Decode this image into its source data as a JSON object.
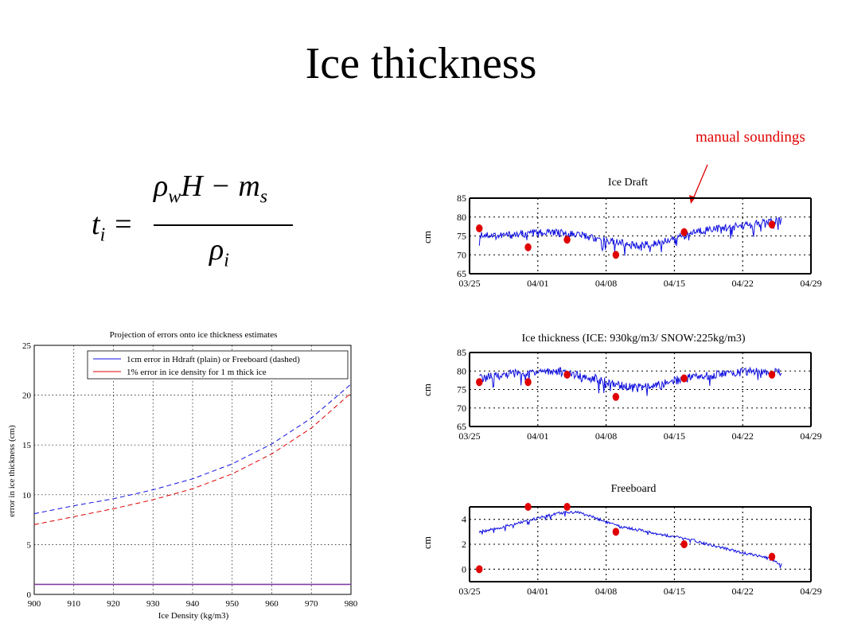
{
  "slide": {
    "title": "Ice thickness",
    "annotation": "manual soundings"
  },
  "equation": {
    "lhs": "t",
    "lhs_sub": "i",
    "equals": "=",
    "numerator_rho": "ρ",
    "numerator_rho_sub": "w",
    "numerator_rest": "H − m",
    "numerator_rest_sub": "s",
    "denominator": "ρ",
    "denominator_sub": "i"
  },
  "colors": {
    "series_blue": "#1010e0",
    "series_red": "#e00000",
    "purple": "#8040a0",
    "annotation": "#e00000"
  },
  "chart_data": [
    {
      "type": "line",
      "title": "Projection of errors onto ice thickness estimates",
      "xlabel": "Ice Density (kg/m3)",
      "ylabel": "error in ice thickness (cm)",
      "xlim": [
        900,
        980
      ],
      "ylim": [
        0,
        25
      ],
      "xticks": [
        "900",
        "910",
        "920",
        "930",
        "940",
        "950",
        "960",
        "970",
        "980"
      ],
      "yticks": [
        "0",
        "5",
        "10",
        "15",
        "20",
        "25"
      ],
      "grid": true,
      "legend_position": "top-right",
      "legend": [
        {
          "label": "1cm error in Hdraft (plain)  or Freeboard (dashed)",
          "color": "#1010e0"
        },
        {
          "label": "1% error in ice density for 1 m thick ice",
          "color": "#e00000"
        }
      ],
      "x": [
        900,
        910,
        920,
        930,
        940,
        950,
        960,
        970,
        980
      ],
      "series": [
        {
          "values": [
            8.1,
            8.9,
            9.6,
            10.5,
            11.6,
            13.1,
            15.1,
            17.7,
            21.1
          ],
          "style": "dashed",
          "color": "#1010e0"
        },
        {
          "values": [
            7.0,
            7.8,
            8.6,
            9.5,
            10.6,
            12.1,
            14.1,
            16.7,
            20.2
          ],
          "style": "dashed",
          "color": "#e00000"
        },
        {
          "values": [
            1.0,
            1.0,
            1.0,
            1.0,
            1.0,
            1.0,
            1.0,
            1.0,
            1.0
          ],
          "style": "solid",
          "color": "#8040a0"
        }
      ]
    },
    {
      "type": "line",
      "title": "Ice Draft",
      "ylabel": "cm",
      "xlim_days": [
        0,
        34
      ],
      "xticks": [
        "03/25",
        "04/01",
        "04/08",
        "04/15",
        "04/22",
        "04/29"
      ],
      "ylim": [
        65,
        85
      ],
      "yticks": [
        "65",
        "70",
        "75",
        "80",
        "85"
      ],
      "grid": true,
      "series": [
        {
          "name": "",
          "color": "#1010e0",
          "x": [
            "03/26",
            "03/28",
            "03/30",
            "04/01",
            "04/03",
            "04/05",
            "04/07",
            "04/09",
            "04/11",
            "04/13",
            "04/15",
            "04/17",
            "04/19",
            "04/21",
            "04/23",
            "04/25",
            "04/26"
          ],
          "values": [
            75.5,
            75,
            75.5,
            76,
            76,
            75.5,
            74.5,
            73.5,
            72.5,
            73,
            74.5,
            76,
            77,
            77.5,
            78,
            79,
            79
          ]
        }
      ],
      "points": [
        {
          "x": "03/26",
          "y": 77
        },
        {
          "x": "03/31",
          "y": 72
        },
        {
          "x": "04/04",
          "y": 74
        },
        {
          "x": "04/09",
          "y": 70
        },
        {
          "x": "04/16",
          "y": 76
        },
        {
          "x": "04/25",
          "y": 78
        }
      ]
    },
    {
      "type": "line",
      "title": "Ice thickness (ICE: 930kg/m3/ SNOW:225kg/m3)",
      "ylabel": "cm",
      "xticks": [
        "03/25",
        "04/01",
        "04/08",
        "04/15",
        "04/22",
        "04/29"
      ],
      "ylim": [
        65,
        85
      ],
      "yticks": [
        "65",
        "70",
        "75",
        "80",
        "85"
      ],
      "grid": true,
      "series": [
        {
          "name": "",
          "color": "#1010e0",
          "x": [
            "03/26",
            "03/28",
            "03/30",
            "04/01",
            "04/03",
            "04/05",
            "04/07",
            "04/09",
            "04/11",
            "04/13",
            "04/15",
            "04/17",
            "04/19",
            "04/21",
            "04/23",
            "04/25",
            "04/26"
          ],
          "values": [
            78,
            79,
            79.5,
            80,
            80,
            79,
            78,
            76.5,
            75.5,
            76,
            77.5,
            78.5,
            79,
            79.5,
            80,
            80,
            79.5
          ]
        }
      ],
      "points": [
        {
          "x": "03/26",
          "y": 77
        },
        {
          "x": "03/31",
          "y": 77
        },
        {
          "x": "04/04",
          "y": 79
        },
        {
          "x": "04/09",
          "y": 73
        },
        {
          "x": "04/16",
          "y": 78
        },
        {
          "x": "04/25",
          "y": 79
        }
      ]
    },
    {
      "type": "line",
      "title": "Freeboard",
      "ylabel": "cm",
      "xticks": [
        "03/25",
        "04/01",
        "04/08",
        "04/15",
        "04/22",
        "04/29"
      ],
      "ylim": [
        -1,
        5
      ],
      "yticks": [
        "0",
        "2",
        "4"
      ],
      "grid": true,
      "series": [
        {
          "name": "",
          "color": "#1010e0",
          "x": [
            "03/26",
            "03/28",
            "03/30",
            "04/01",
            "04/03",
            "04/05",
            "04/07",
            "04/09",
            "04/11",
            "04/13",
            "04/15",
            "04/17",
            "04/19",
            "04/21",
            "04/23",
            "04/25",
            "04/26"
          ],
          "values": [
            3.0,
            3.3,
            3.7,
            4.1,
            4.5,
            4.6,
            4.1,
            3.5,
            3.2,
            2.9,
            2.6,
            2.3,
            1.9,
            1.5,
            1.2,
            0.8,
            0.4
          ]
        }
      ],
      "points": [
        {
          "x": "03/26",
          "y": 0
        },
        {
          "x": "03/31",
          "y": 5
        },
        {
          "x": "04/04",
          "y": 5
        },
        {
          "x": "04/09",
          "y": 3
        },
        {
          "x": "04/16",
          "y": 2
        },
        {
          "x": "04/25",
          "y": 1
        }
      ]
    }
  ]
}
